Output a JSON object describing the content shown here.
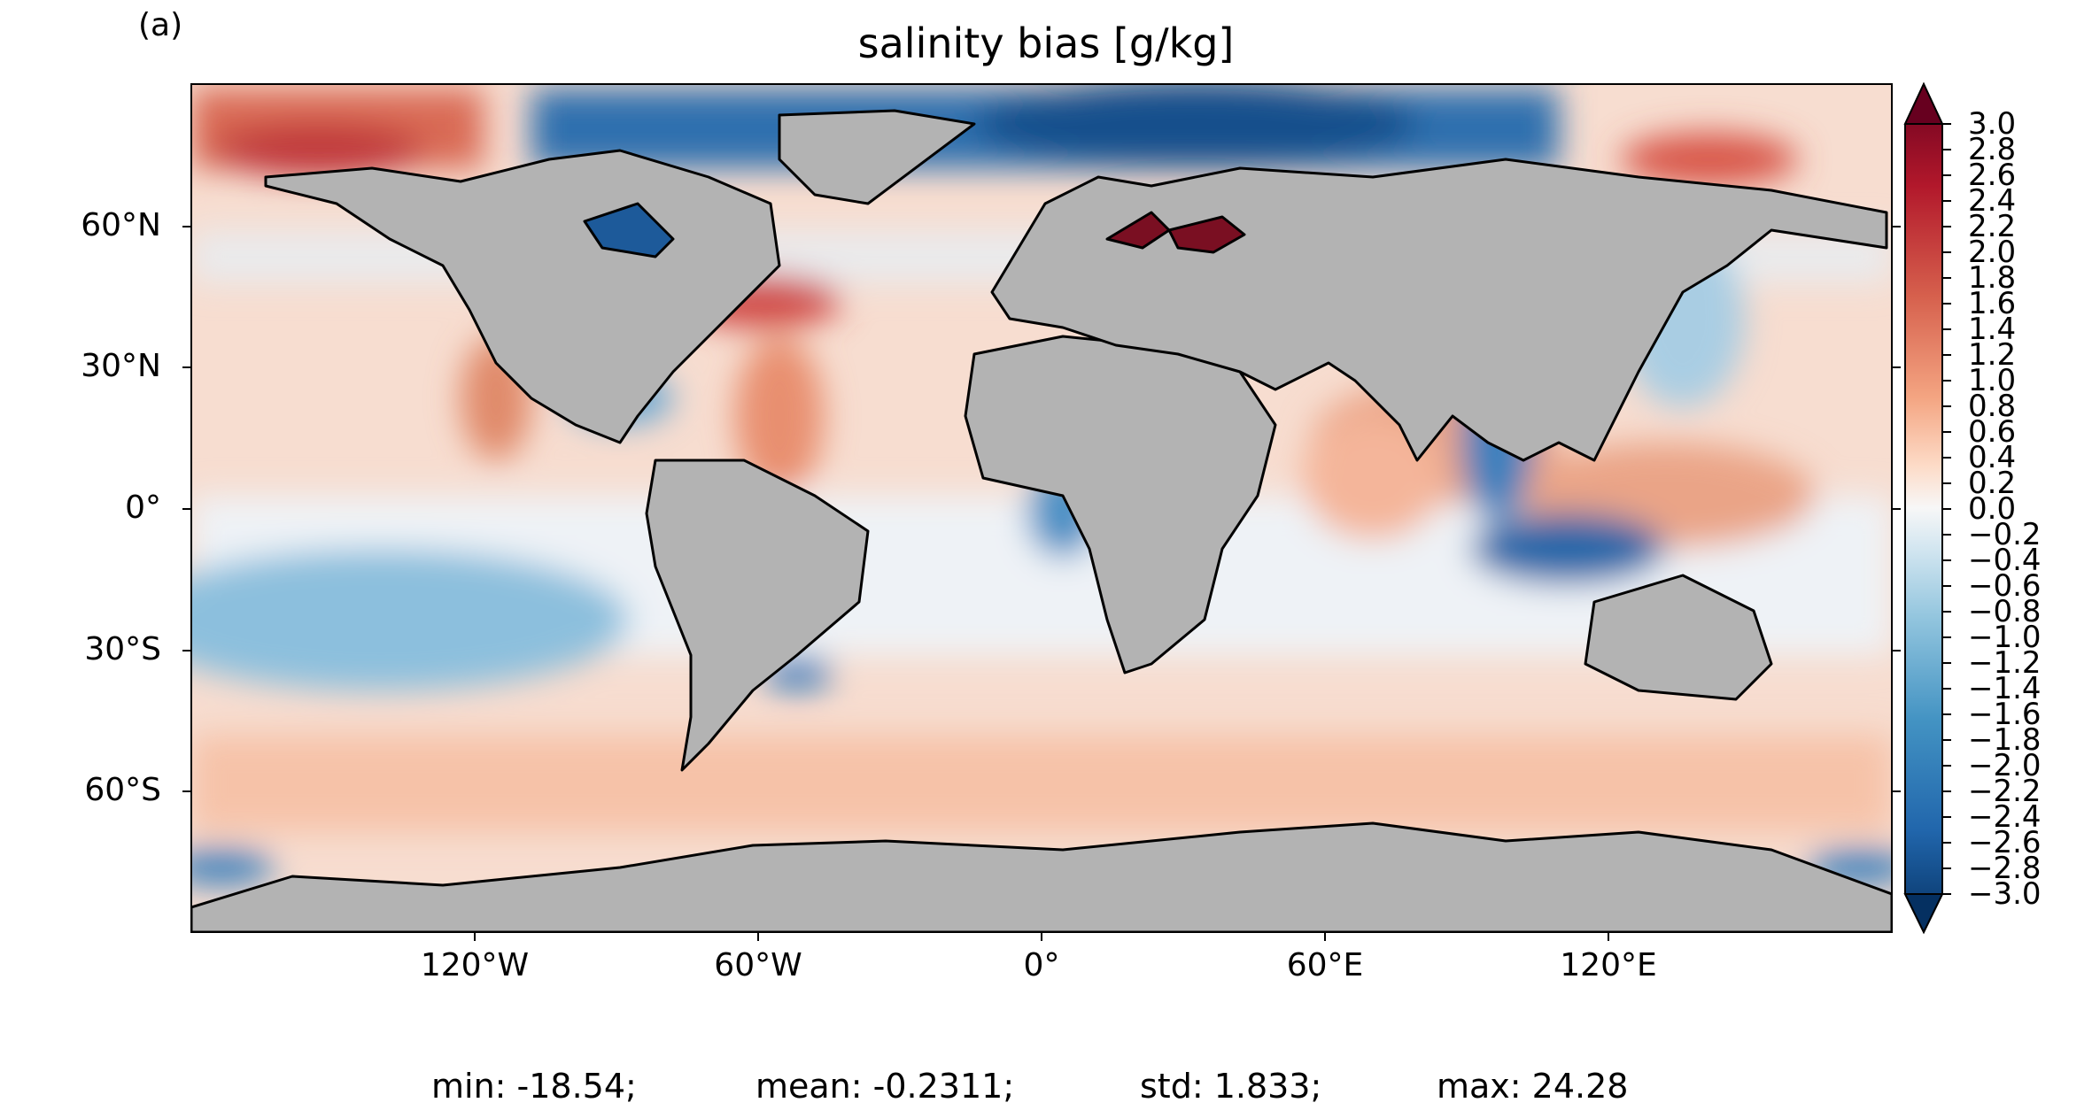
{
  "panel_label": "(a)",
  "title": "salinity bias [g/kg]",
  "map": {
    "projection": "Plate Carree",
    "land_color": "#b3b3b3",
    "coastline_color": "#000000",
    "colormap": "RdBu_r"
  },
  "axes": {
    "y_ticks": [
      "60°N",
      "30°N",
      "0°",
      "30°S",
      "60°S"
    ],
    "x_ticks": [
      "120°W",
      "60°W",
      "0°",
      "60°E",
      "120°E"
    ]
  },
  "colorbar": {
    "min": -3.0,
    "max": 3.0,
    "step": 0.2,
    "extend": "both",
    "ticks": [
      "3.0",
      "2.8",
      "2.6",
      "2.4",
      "2.2",
      "2.0",
      "1.8",
      "1.6",
      "1.4",
      "1.2",
      "1.0",
      "0.8",
      "0.6",
      "0.4",
      "0.2",
      "0.0",
      "−0.2",
      "−0.4",
      "−0.6",
      "−0.8",
      "−1.0",
      "−1.2",
      "−1.4",
      "−1.6",
      "−1.8",
      "−2.0",
      "−2.2",
      "−2.4",
      "−2.6",
      "−2.8",
      "−3.0"
    ]
  },
  "stats": {
    "min": "min: -18.54;",
    "mean": "mean: -0.2311;",
    "std": "std: 1.833;",
    "max": "max: 24.28"
  }
}
